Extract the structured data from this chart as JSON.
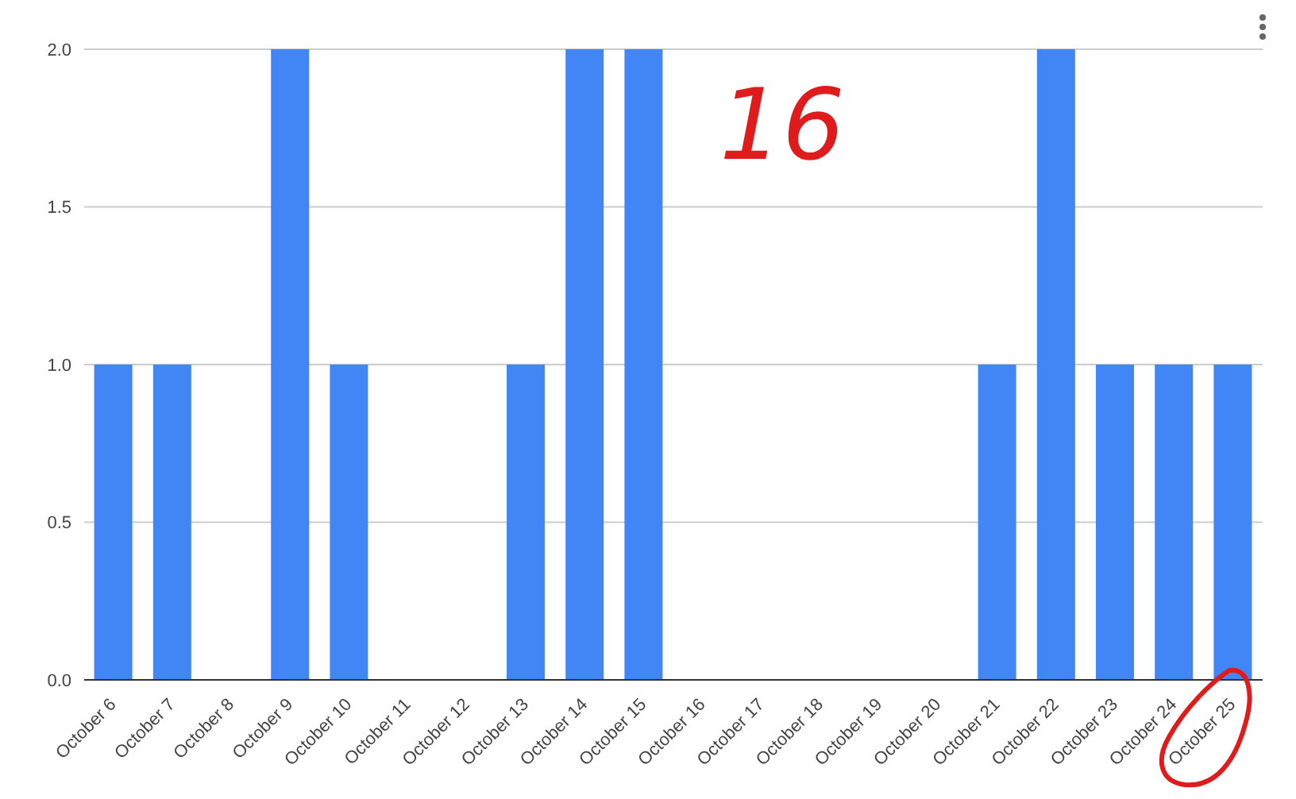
{
  "chart_data": {
    "type": "bar",
    "categories": [
      "October 6",
      "October 7",
      "October 8",
      "October 9",
      "October 10",
      "October 11",
      "October 12",
      "October 13",
      "October 14",
      "October 15",
      "October 16",
      "October 17",
      "October 18",
      "October 19",
      "October 20",
      "October 21",
      "October 22",
      "October 23",
      "October 24",
      "October 25"
    ],
    "values": [
      1,
      1,
      0,
      2,
      1,
      0,
      0,
      1,
      2,
      2,
      0,
      0,
      0,
      0,
      0,
      1,
      2,
      1,
      1,
      1
    ],
    "color": "#4285f4",
    "ylim": [
      0,
      2
    ],
    "yticks": [
      {
        "value": 0,
        "label": "0.0"
      },
      {
        "value": 0.5,
        "label": "0.5"
      },
      {
        "value": 1,
        "label": "1.0"
      },
      {
        "value": 1.5,
        "label": "1.5"
      },
      {
        "value": 2,
        "label": "2.0"
      }
    ],
    "grid": "y",
    "annotations": [
      "16"
    ]
  }
}
